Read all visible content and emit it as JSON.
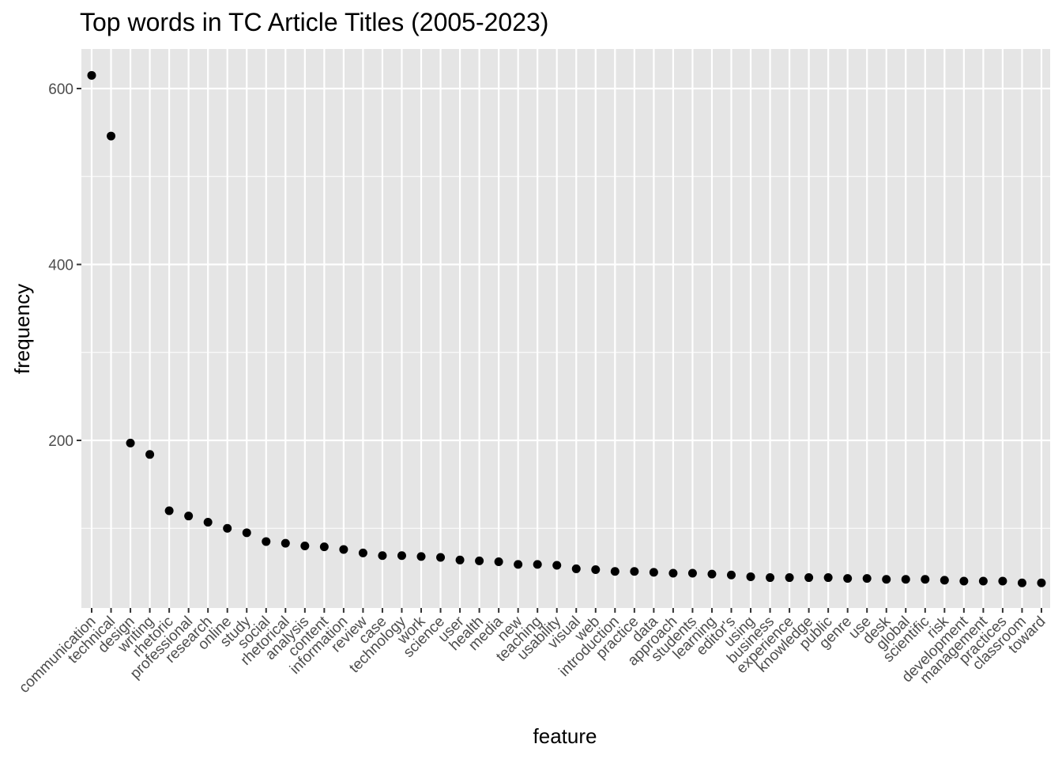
{
  "chart_data": {
    "type": "scatter",
    "title": "Top words in TC Article Titles (2005-2023)",
    "xlabel": "feature",
    "ylabel": "frequency",
    "ylim": [
      0,
      650
    ],
    "y_ticks": [
      200,
      400,
      600
    ],
    "grid": true,
    "panel_background": "#e5e5e5",
    "grid_color": "#ffffff",
    "point_color": "#000000",
    "categories": [
      "communication",
      "technical",
      "design",
      "writing",
      "rhetoric",
      "professional",
      "research",
      "online",
      "study",
      "social",
      "rhetorical",
      "analysis",
      "content",
      "information",
      "review",
      "case",
      "technology",
      "work",
      "science",
      "user",
      "health",
      "media",
      "new",
      "teaching",
      "usability",
      "visual",
      "web",
      "introduction",
      "practice",
      "data",
      "approach",
      "students",
      "learning",
      "editor's",
      "using",
      "business",
      "experience",
      "knowledge",
      "public",
      "genre",
      "use",
      "desk",
      "global",
      "scientific",
      "risk",
      "development",
      "management",
      "practices",
      "classroom",
      "toward"
    ],
    "values": [
      615,
      546,
      197,
      184,
      120,
      114,
      107,
      100,
      95,
      85,
      83,
      80,
      79,
      76,
      72,
      69,
      69,
      68,
      67,
      64,
      63,
      62,
      59,
      59,
      58,
      54,
      53,
      51,
      51,
      50,
      49,
      49,
      48,
      47,
      45,
      44,
      44,
      44,
      44,
      43,
      43,
      42,
      42,
      42,
      41,
      40,
      40,
      40,
      38,
      38
    ]
  }
}
